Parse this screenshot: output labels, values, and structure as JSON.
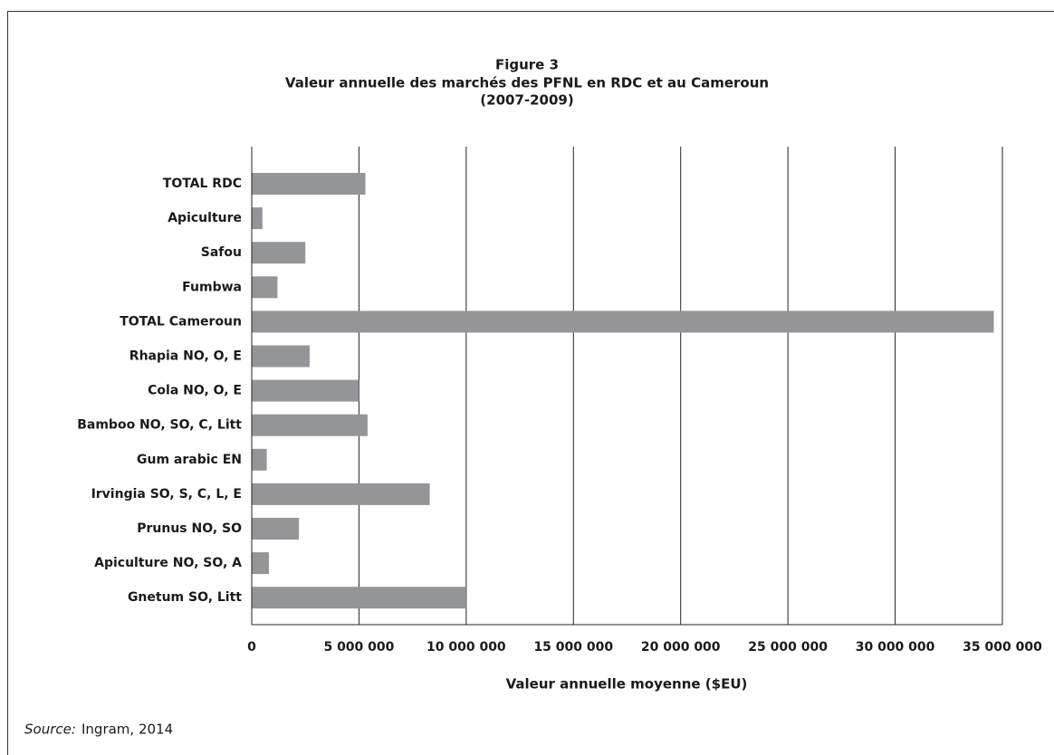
{
  "chart_data": {
    "type": "barh",
    "figure_label": "Figure 3",
    "title": "Valeur annuelle des marchés des PFNL en RDC et au Cameroun",
    "subtitle": "(2007-2009)",
    "x_label": "Valeur annuelle moyenne ($EU)",
    "source_label": "Source:",
    "source": "Ingram, 2014",
    "categories": [
      "TOTAL RDC",
      "Apiculture",
      "Safou",
      "Fumbwa",
      "TOTAL Cameroun",
      "Rhapia NO, O, E",
      "Cola NO, O, E",
      "Bamboo NO, SO, C, Litt",
      "Gum arabic EN",
      "Irvingia SO, S, C, L, E",
      "Prunus NO, SO",
      "Apiculture NO, SO, A",
      "Gnetum SO, Litt"
    ],
    "values": [
      5300000,
      500000,
      2500000,
      1200000,
      34600000,
      2700000,
      5000000,
      5400000,
      700000,
      8300000,
      2200000,
      800000,
      10000000
    ],
    "color": "#939598",
    "xlim": [
      0,
      35000000
    ],
    "xticks": [
      0,
      {
        "value": 5000000,
        "label": "5 000 000"
      },
      {
        "value": 10000000,
        "label": "10 000 000"
      },
      {
        "value": 15000000,
        "label": "15 000 000"
      },
      {
        "value": 20000000,
        "label": "20 000 000"
      },
      {
        "value": 25000000,
        "label": "25 000 000"
      },
      {
        "value": 30000000,
        "label": "30 000 000"
      },
      {
        "value": 35000000,
        "label": "35 000 000"
      }
    ],
    "grid": true
  }
}
